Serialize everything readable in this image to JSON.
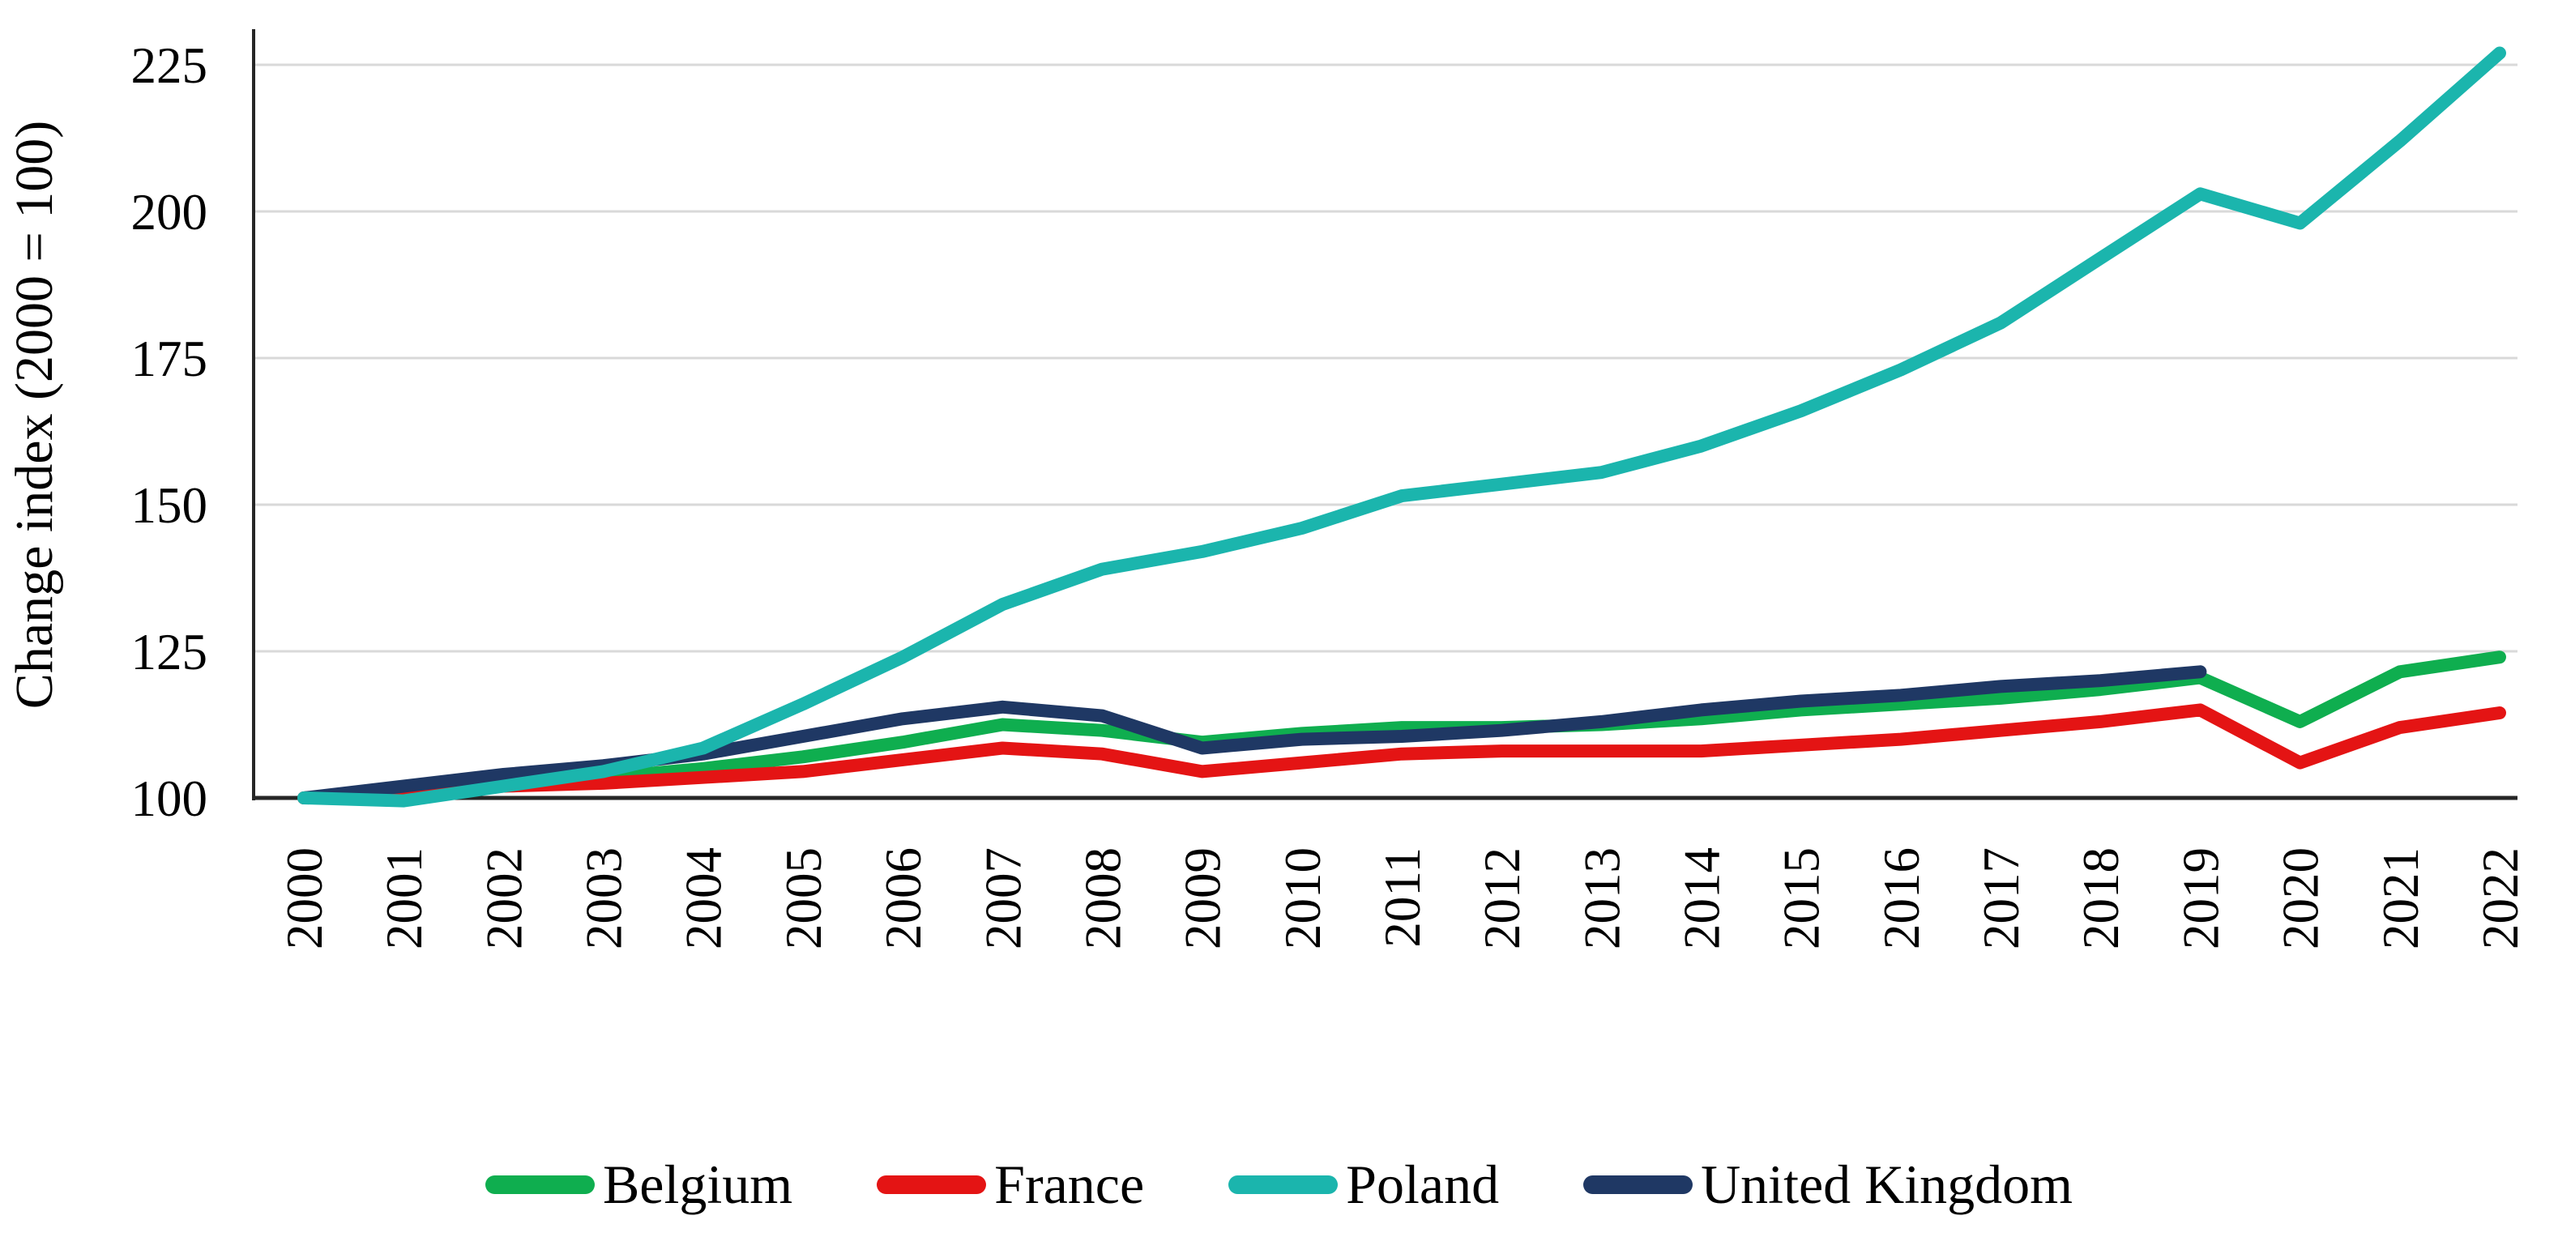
{
  "chart_data": {
    "type": "line",
    "title": "",
    "xlabel": "",
    "ylabel": "Change index (2000 = 100)",
    "x": [
      2000,
      2001,
      2002,
      2003,
      2004,
      2005,
      2006,
      2007,
      2008,
      2009,
      2010,
      2011,
      2012,
      2013,
      2014,
      2015,
      2016,
      2017,
      2018,
      2019,
      2020,
      2021,
      2022
    ],
    "yticks": [
      100,
      125,
      150,
      175,
      200,
      225
    ],
    "ylim": [
      100,
      230
    ],
    "grid": "horizontal-only",
    "gridline_color": "#d9d9d9",
    "axis_color": "#262626",
    "legend_position": "bottom",
    "series": [
      {
        "name": "Belgium",
        "color": "#0fae4f",
        "z": 1,
        "values": [
          100,
          101,
          102.5,
          103.5,
          105,
          107,
          109.5,
          112.5,
          111.5,
          109.5,
          111,
          112,
          112,
          112.5,
          113.5,
          115,
          116,
          117,
          118.5,
          120.5,
          113,
          121.5,
          124
        ]
      },
      {
        "name": "France",
        "color": "#e41414",
        "z": 2,
        "values": [
          100,
          101,
          102,
          102.5,
          103.5,
          104.5,
          106.5,
          108.5,
          107.5,
          104.5,
          106,
          107.5,
          108,
          108,
          108,
          109,
          110,
          111.5,
          113,
          115,
          106,
          112,
          114.5
        ]
      },
      {
        "name": "Poland",
        "color": "#1bb5ad",
        "z": 4,
        "values": [
          100,
          99.5,
          102,
          104.5,
          108.5,
          116,
          124,
          133,
          139,
          142,
          146,
          151.5,
          153.5,
          155.5,
          160,
          166,
          173,
          181,
          192,
          203,
          198,
          212,
          227
        ]
      },
      {
        "name": "United Kingdom",
        "color": "#1f3864",
        "z": 3,
        "values": [
          100,
          102,
          104,
          105.5,
          107.5,
          110.5,
          113.5,
          115.5,
          114,
          108.5,
          110,
          110.5,
          111.5,
          113,
          115,
          116.5,
          117.5,
          119,
          120,
          121.5,
          null,
          null,
          null
        ]
      }
    ]
  }
}
